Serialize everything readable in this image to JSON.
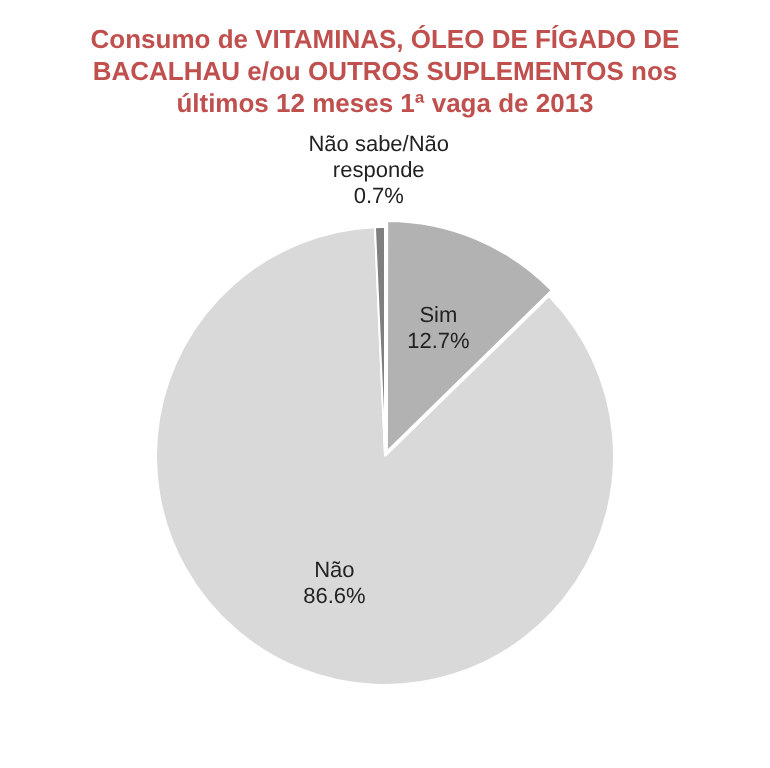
{
  "chart_data": {
    "type": "pie",
    "title": "Consumo de VITAMINAS, ÓLEO DE FÍGADO DE BACALHAU e/ou OUTROS SUPLEMENTOS nos últimos 12 meses 1ª vaga de 2013",
    "categories": [
      "Sim",
      "Não",
      "Não sabe/Não responde"
    ],
    "values": [
      12.7,
      86.6,
      0.7
    ],
    "colors": [
      "#b2b2b2",
      "#d9d9d9",
      "#7f7f7f"
    ],
    "value_labels": [
      "12.7%",
      "86.6%",
      "0.7%"
    ],
    "legend": false
  }
}
